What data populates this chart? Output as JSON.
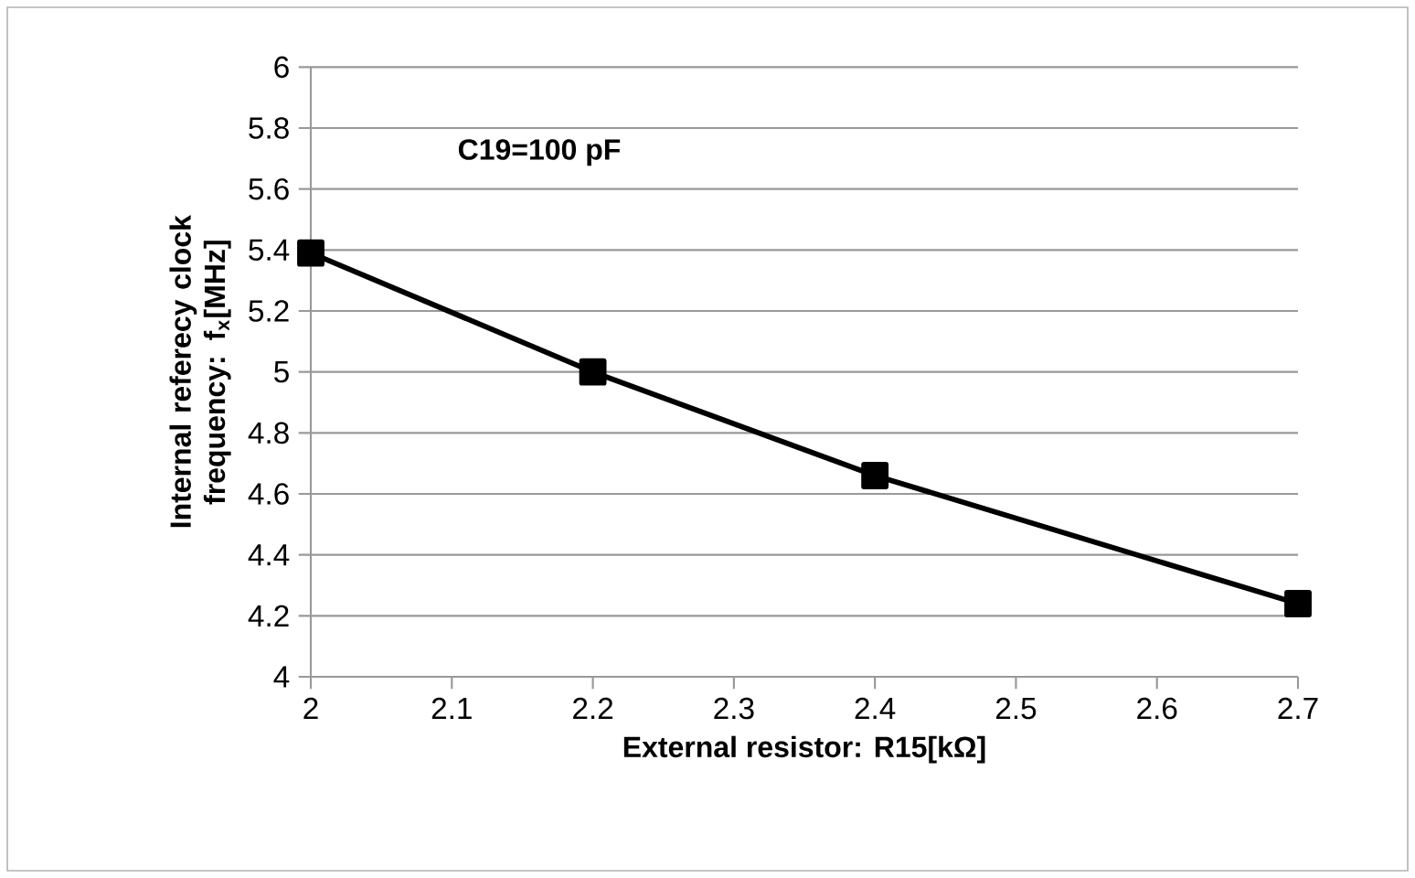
{
  "chart_data": {
    "type": "line",
    "xlabel": "External resistor: R15[kΩ]",
    "ylabel": "Internal referecy clock frequency: f$_{x}$[MHz]",
    "annotations": [
      "C19=100 pF"
    ],
    "x": [
      2,
      2.2,
      2.4,
      2.7
    ],
    "series": [
      {
        "color": "#000000",
        "values": [
          5.39,
          5.0,
          4.66,
          4.24
        ]
      }
    ],
    "xlim": [
      2,
      2.7
    ],
    "xticks": [
      2,
      2.1,
      2.2,
      2.3,
      2.4,
      2.5,
      2.6,
      2.7
    ],
    "ylim": [
      4,
      6
    ],
    "yticks": [
      4,
      4.2,
      4.4,
      4.6,
      4.8,
      5,
      5.2,
      5.4,
      5.6,
      5.8,
      6
    ],
    "grid": "y",
    "marker": "square",
    "line_style": "solid"
  }
}
